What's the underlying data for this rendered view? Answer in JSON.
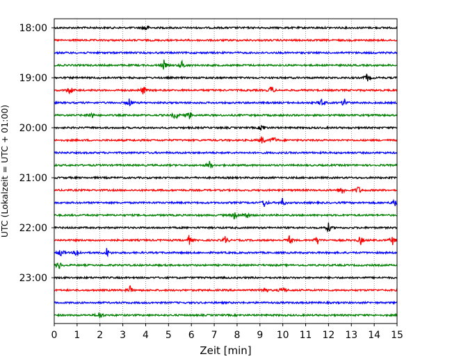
{
  "chart_data": {
    "type": "line",
    "title": "",
    "xlabel": "Zeit  [min]",
    "ylabel": "UTC (Lokalzeit = UTC + 01:00)",
    "xlim": [
      0,
      15
    ],
    "x_ticks": [
      "0",
      "1",
      "2",
      "3",
      "4",
      "5",
      "6",
      "7",
      "8",
      "9",
      "10",
      "11",
      "12",
      "13",
      "14",
      "15"
    ],
    "y_tick_labels": [
      "18:00",
      "19:00",
      "20:00",
      "21:00",
      "22:00",
      "23:00"
    ],
    "grid": "vertical dotted",
    "trace_colors": [
      "#000000",
      "#ff0000",
      "#0000ff",
      "#008000"
    ],
    "trace_start_times": [
      "18:00",
      "18:15",
      "18:30",
      "18:45",
      "19:00",
      "19:15",
      "19:30",
      "19:45",
      "20:00",
      "20:15",
      "20:30",
      "20:45",
      "21:00",
      "21:15",
      "21:30",
      "21:45",
      "22:00",
      "22:15",
      "22:30",
      "22:45",
      "23:00",
      "23:15",
      "23:30",
      "23:45"
    ],
    "events": [
      {
        "trace": 0,
        "minutes": [
          4.0
        ]
      },
      {
        "trace": 3,
        "minutes": [
          4.8,
          5.6
        ]
      },
      {
        "trace": 4,
        "minutes": [
          13.7
        ]
      },
      {
        "trace": 5,
        "minutes": [
          0.7,
          3.9,
          9.5
        ]
      },
      {
        "trace": 6,
        "minutes": [
          3.3,
          11.7,
          12.7
        ]
      },
      {
        "trace": 7,
        "minutes": [
          1.6,
          5.3,
          5.9
        ]
      },
      {
        "trace": 8,
        "minutes": [
          9.1
        ]
      },
      {
        "trace": 9,
        "minutes": [
          9.1,
          9.6
        ]
      },
      {
        "trace": 11,
        "minutes": [
          6.8
        ]
      },
      {
        "trace": 13,
        "minutes": [
          12.6,
          13.3
        ]
      },
      {
        "trace": 14,
        "minutes": [
          9.2,
          10.0,
          14.9
        ]
      },
      {
        "trace": 15,
        "minutes": [
          7.9,
          8.4
        ]
      },
      {
        "trace": 16,
        "minutes": [
          12.0
        ]
      },
      {
        "trace": 17,
        "minutes": [
          5.9,
          7.5,
          10.3,
          11.5,
          13.4,
          14.8
        ]
      },
      {
        "trace": 18,
        "minutes": [
          0.3,
          1.0,
          2.3
        ]
      },
      {
        "trace": 19,
        "minutes": [
          0.2
        ]
      },
      {
        "trace": 21,
        "minutes": [
          3.3,
          9.2,
          10.0
        ]
      },
      {
        "trace": 23,
        "minutes": [
          2.0
        ]
      }
    ]
  }
}
